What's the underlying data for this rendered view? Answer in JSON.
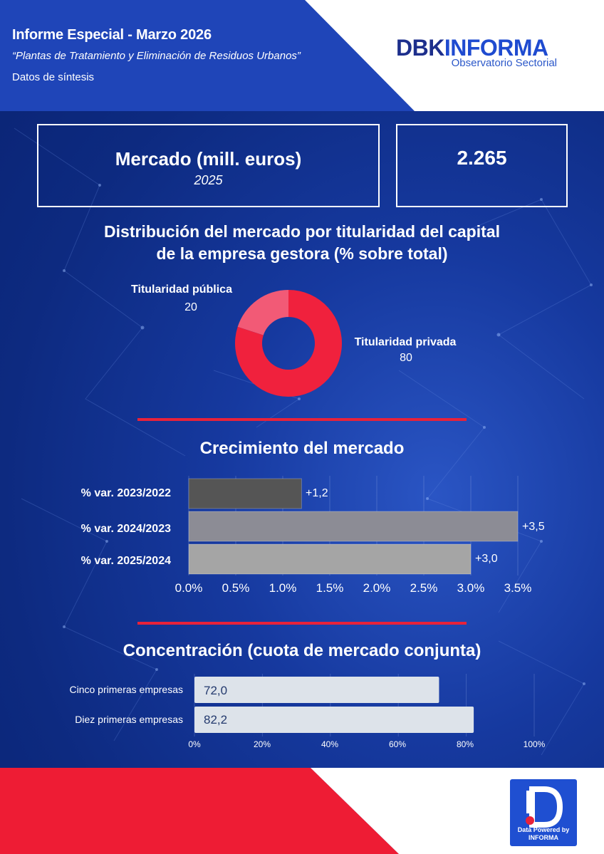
{
  "header": {
    "title": "Informe Especial - Marzo 2026",
    "subtitle": "“Plantas de Tratamiento y Eliminación de Residuos Urbanos”",
    "note": "Datos de síntesis"
  },
  "logo": {
    "brand_part1": "DBK",
    "brand_part2": "INFORMA",
    "tagline": "Observatorio Sectorial"
  },
  "kpi": {
    "label": "Mercado (mill. euros)",
    "year": "2025",
    "value": "2.265"
  },
  "distribution": {
    "title_line1": "Distribución del mercado por titularidad del capital",
    "title_line2": "de la empresa gestora (% sobre total)"
  },
  "growth": {
    "title": "Crecimiento del mercado"
  },
  "concentration": {
    "title": "Concentración (cuota de mercado conjunta)"
  },
  "badge": {
    "line1": "Data Powered by",
    "line2": "INFORMA"
  },
  "colors": {
    "background": "#0d2a80",
    "accent_red": "#e8223a",
    "donut_private": "#f0213d",
    "donut_public": "#f25a76",
    "growth_bars": [
      "#555555",
      "#8c8c95",
      "#a5a5a5"
    ],
    "concentration_bars": "#dde3ea"
  },
  "chart_data": [
    {
      "type": "pie",
      "donut": true,
      "labels": [
        "Titularidad pública",
        "Titularidad privada"
      ],
      "values": [
        20,
        80
      ],
      "value_labels": [
        "20",
        "80"
      ]
    },
    {
      "type": "bar",
      "orientation": "horizontal",
      "categories": [
        "% var. 2023/2022",
        "% var. 2024/2023",
        "% var. 2025/2024"
      ],
      "values": [
        1.2,
        3.5,
        3.0
      ],
      "value_labels": [
        "+1,2",
        "+3,5",
        "+3,0"
      ],
      "xlim": [
        0,
        3.5
      ],
      "xticks": [
        "0.0%",
        "0.5%",
        "1.0%",
        "1.5%",
        "2.0%",
        "2.5%",
        "3.0%",
        "3.5%"
      ],
      "grid": true
    },
    {
      "type": "bar",
      "orientation": "horizontal",
      "categories": [
        "Cinco primeras empresas",
        "Diez primeras empresas"
      ],
      "values": [
        72.0,
        82.2
      ],
      "value_labels": [
        "72,0",
        "82,2"
      ],
      "xlim": [
        0,
        100
      ],
      "xticks": [
        "0%",
        "20%",
        "40%",
        "60%",
        "80%",
        "100%"
      ],
      "grid": true
    }
  ]
}
